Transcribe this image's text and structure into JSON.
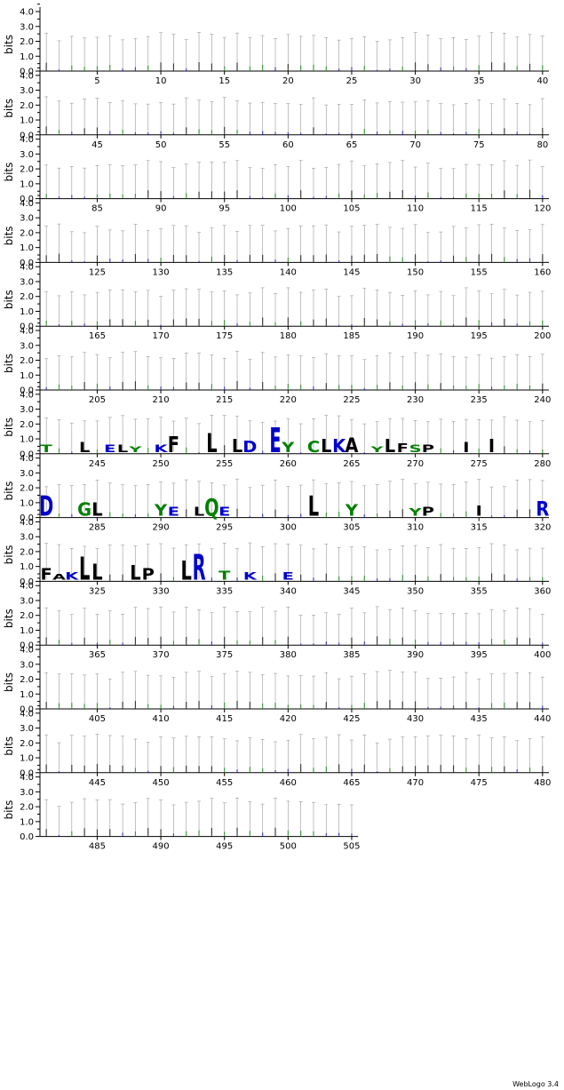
{
  "credit": "WebLogo 3.4",
  "colors": {
    "hydrophobic": "#000000",
    "polar": "#008000",
    "charged": "#0000cc",
    "axis": "#000000",
    "errorbar": "#999999"
  },
  "chart_data": {
    "type": "sequence-logo",
    "ylabel": "bits",
    "ylim": [
      0,
      4.3
    ],
    "yticks": [
      "0.0",
      "1.0",
      "2.0",
      "3.0",
      "4.0"
    ],
    "sequence_length": 505,
    "positions_per_row": 40,
    "rows": [
      {
        "x_ticks": [
          5,
          10,
          15,
          20,
          25,
          30,
          35,
          40
        ]
      },
      {
        "x_ticks": [
          45,
          50,
          55,
          60,
          65,
          70,
          75,
          80
        ]
      },
      {
        "x_ticks": [
          85,
          90,
          95,
          100,
          105,
          110,
          115,
          120
        ]
      },
      {
        "x_ticks": [
          125,
          130,
          135,
          140,
          145,
          150,
          155,
          160
        ]
      },
      {
        "x_ticks": [
          165,
          170,
          175,
          180,
          185,
          190,
          195,
          200
        ]
      },
      {
        "x_ticks": [
          205,
          210,
          215,
          220,
          225,
          230,
          235,
          240
        ]
      },
      {
        "x_ticks": [
          245,
          250,
          255,
          260,
          265,
          270,
          275,
          280
        ]
      },
      {
        "x_ticks": [
          285,
          290,
          295,
          300,
          305,
          310,
          315,
          320
        ]
      },
      {
        "x_ticks": [
          325,
          330,
          335,
          340,
          345,
          350,
          355,
          360
        ]
      },
      {
        "x_ticks": [
          365,
          370,
          375,
          380,
          385,
          390,
          395,
          400
        ]
      },
      {
        "x_ticks": [
          405,
          410,
          415,
          420,
          425,
          430,
          435,
          440
        ]
      },
      {
        "x_ticks": [
          445,
          450,
          455,
          460,
          465,
          470,
          475,
          480
        ]
      },
      {
        "x_ticks": [
          485,
          490,
          495,
          500,
          505
        ]
      }
    ],
    "prominent_letters": [
      {
        "pos": 241,
        "letter": "T",
        "bits": 0.5
      },
      {
        "pos": 244,
        "letter": "L",
        "bits": 0.7
      },
      {
        "pos": 246,
        "letter": "E",
        "bits": 0.5
      },
      {
        "pos": 247,
        "letter": "L",
        "bits": 0.5
      },
      {
        "pos": 248,
        "letter": "Y",
        "bits": 0.4
      },
      {
        "pos": 250,
        "letter": "K",
        "bits": 0.5
      },
      {
        "pos": 251,
        "letter": "F",
        "bits": 1.1
      },
      {
        "pos": 254,
        "letter": "L",
        "bits": 1.3
      },
      {
        "pos": 256,
        "letter": "L",
        "bits": 0.9
      },
      {
        "pos": 257,
        "letter": "D",
        "bits": 0.8
      },
      {
        "pos": 259,
        "letter": "E",
        "bits": 1.7
      },
      {
        "pos": 260,
        "letter": "Y",
        "bits": 0.7
      },
      {
        "pos": 262,
        "letter": "C",
        "bits": 0.8
      },
      {
        "pos": 263,
        "letter": "L",
        "bits": 0.9
      },
      {
        "pos": 264,
        "letter": "K",
        "bits": 0.9
      },
      {
        "pos": 265,
        "letter": "A",
        "bits": 1.0
      },
      {
        "pos": 267,
        "letter": "Y",
        "bits": 0.4
      },
      {
        "pos": 268,
        "letter": "L",
        "bits": 0.9
      },
      {
        "pos": 269,
        "letter": "F",
        "bits": 0.6
      },
      {
        "pos": 270,
        "letter": "S",
        "bits": 0.5
      },
      {
        "pos": 271,
        "letter": "P",
        "bits": 0.5
      },
      {
        "pos": 274,
        "letter": "I",
        "bits": 0.7
      },
      {
        "pos": 276,
        "letter": "I",
        "bits": 0.9
      },
      {
        "pos": 281,
        "letter": "D",
        "bits": 1.4
      },
      {
        "pos": 284,
        "letter": "G",
        "bits": 0.9
      },
      {
        "pos": 285,
        "letter": "L",
        "bits": 0.9
      },
      {
        "pos": 290,
        "letter": "Y",
        "bits": 0.8
      },
      {
        "pos": 291,
        "letter": "E",
        "bits": 0.6
      },
      {
        "pos": 293,
        "letter": "L",
        "bits": 0.6
      },
      {
        "pos": 294,
        "letter": "Q",
        "bits": 1.2
      },
      {
        "pos": 295,
        "letter": "E",
        "bits": 0.6
      },
      {
        "pos": 302,
        "letter": "L",
        "bits": 1.4
      },
      {
        "pos": 305,
        "letter": "Y",
        "bits": 0.8
      },
      {
        "pos": 310,
        "letter": "Y",
        "bits": 0.5
      },
      {
        "pos": 311,
        "letter": "P",
        "bits": 0.6
      },
      {
        "pos": 315,
        "letter": "I",
        "bits": 0.7
      },
      {
        "pos": 320,
        "letter": "R",
        "bits": 1.0
      },
      {
        "pos": 321,
        "letter": "F",
        "bits": 0.8
      },
      {
        "pos": 322,
        "letter": "A",
        "bits": 0.4
      },
      {
        "pos": 323,
        "letter": "K",
        "bits": 0.5
      },
      {
        "pos": 324,
        "letter": "L",
        "bits": 1.6
      },
      {
        "pos": 325,
        "letter": "L",
        "bits": 1.1
      },
      {
        "pos": 328,
        "letter": "L",
        "bits": 1.0
      },
      {
        "pos": 329,
        "letter": "P",
        "bits": 0.8
      },
      {
        "pos": 332,
        "letter": "L",
        "bits": 1.3
      },
      {
        "pos": 333,
        "letter": "R",
        "bits": 1.8
      },
      {
        "pos": 335,
        "letter": "T",
        "bits": 0.6
      },
      {
        "pos": 337,
        "letter": "K",
        "bits": 0.5
      },
      {
        "pos": 340,
        "letter": "E",
        "bits": 0.5
      }
    ]
  }
}
